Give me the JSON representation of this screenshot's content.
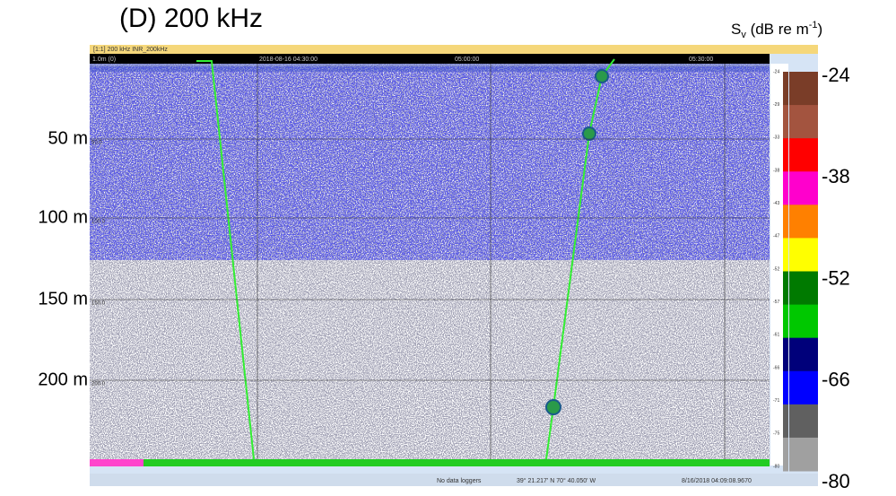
{
  "figure": {
    "title": "(D) 200 kHz",
    "scale_title": {
      "symbol": "S",
      "subscript": "v",
      "unit": " (dB re m",
      "exponent": "-1",
      "close": ")"
    },
    "depth_labels": [
      "50 m",
      "100 m",
      "150 m",
      "200 m"
    ],
    "scale_labels": [
      "-24",
      "-38",
      "-52",
      "-66",
      "-80"
    ],
    "scale_colors": [
      "#7a3d28",
      "#a3543f",
      "#ff0000",
      "#ff00cc",
      "#ff8000",
      "#ffff00",
      "#007a00",
      "#00c800",
      "#00007a",
      "#0000ff",
      "#606060",
      "#a0a0a0"
    ]
  },
  "window": {
    "title": "[1:1] 200 kHz INR_200kHz",
    "range_label": "1.0m (0)",
    "time_labels": [
      "2018-08-16 04:30:00",
      "05:00:00",
      "05:30:00"
    ],
    "depth_ticks": [
      "50.0",
      "100.0",
      "150.0",
      "200.0"
    ],
    "inner_scale_labels": [
      "-24",
      "-29",
      "-33",
      "-38",
      "-43",
      "-47",
      "-52",
      "-57",
      "-61",
      "-66",
      "-71",
      "-75",
      "-80"
    ],
    "status": [
      "No data loggers",
      "39° 21.217' N 70° 40.050' W",
      "8/16/2018 04:09:08.9670"
    ]
  }
}
